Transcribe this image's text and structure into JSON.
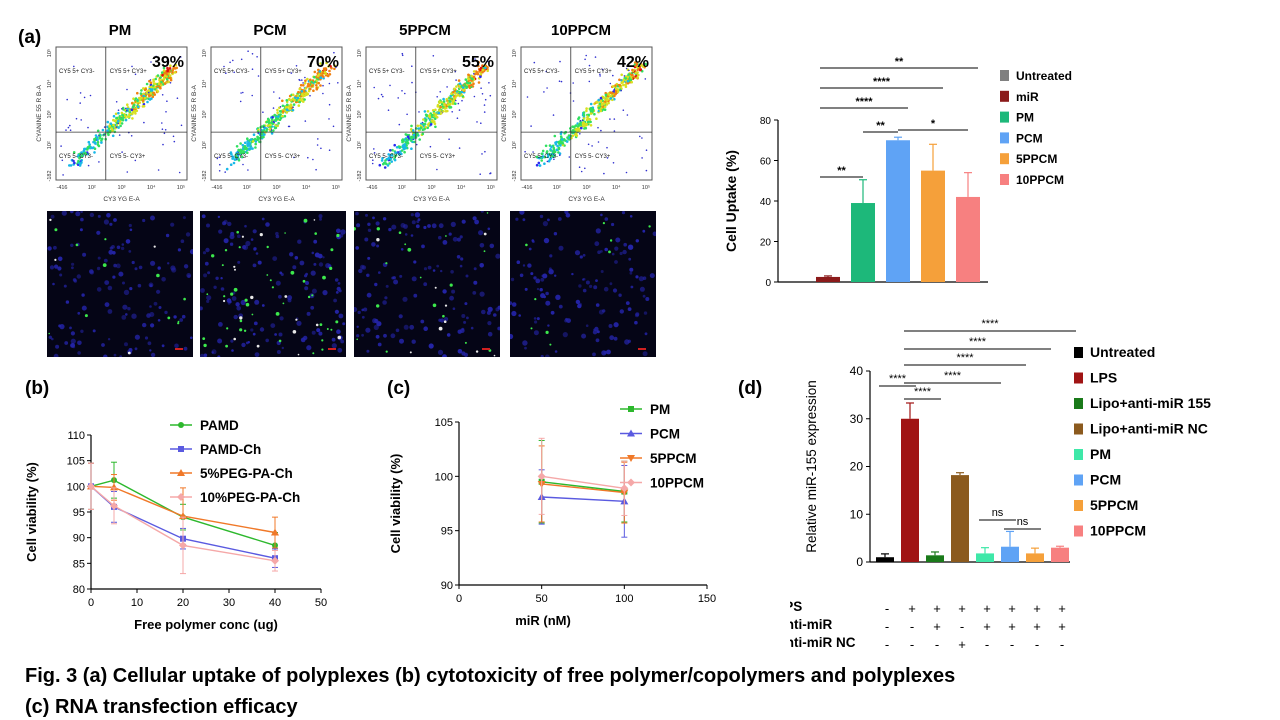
{
  "panel_labels": {
    "a": "(a)",
    "b": "(b)",
    "c": "(c)",
    "d": "(d)"
  },
  "caption": {
    "line1": "Fig. 3 (a) Cellular uptake of polyplexes (b) cytotoxicity of free polymer/copolymers and polyplexes",
    "line2": "(c) RNA transfection efficacy"
  },
  "flow": {
    "panels": [
      {
        "title": "PM",
        "percent": "39%"
      },
      {
        "title": "PCM",
        "percent": "70%"
      },
      {
        "title": "5PPCM",
        "percent": "55%"
      },
      {
        "title": "10PPCM",
        "percent": "42%"
      }
    ],
    "quadrant_labels": {
      "ul": "CY5 5+ CY3-",
      "ur": "CY5 5+ CY3+",
      "ll": "CY5 5- CY3-",
      "lr": "CY5 5- CY3+"
    },
    "x_axis_label": "CY3 YG E-A",
    "y_axis_label": "CYANINE 55 R B-A",
    "x_ticks": [
      "-416",
      "10²",
      "10³",
      "10⁴",
      "10⁵"
    ],
    "y_ticks": [
      "-182",
      "10²",
      "10³",
      "10⁴",
      "10⁵"
    ]
  },
  "chart_data": [
    {
      "id": "uptake",
      "type": "bar",
      "ylabel": "Cell Uptake (%)",
      "ylim": [
        0,
        80
      ],
      "yticks": [
        0,
        20,
        40,
        60,
        80
      ],
      "categories": [
        "Untreated",
        "miR",
        "PM",
        "PCM",
        "5PPCM",
        "10PPCM"
      ],
      "values": [
        0,
        2.5,
        39,
        70,
        55,
        42
      ],
      "errors": [
        0,
        0.5,
        11.5,
        1.5,
        13,
        12
      ],
      "colors": [
        "#808080",
        "#8B1A1A",
        "#1DB87A",
        "#5FA3F5",
        "#F5A03A",
        "#F78080"
      ],
      "legend": [
        "Untreated",
        "miR",
        "PM",
        "PCM",
        "5PPCM",
        "10PPCM"
      ],
      "significance": [
        {
          "from": 1,
          "to": 2,
          "label": "**"
        },
        {
          "from": 2,
          "to": 3,
          "label": "**"
        },
        {
          "from": 3,
          "to": 5,
          "label": "*"
        },
        {
          "from": 1,
          "to": 3,
          "label": "****"
        },
        {
          "from": 1,
          "to": 4,
          "label": "****"
        },
        {
          "from": 1,
          "to": 5,
          "label": "**"
        }
      ]
    },
    {
      "id": "viability_free",
      "type": "line",
      "xlabel": "Free polymer conc (ug)",
      "ylabel": "Cell viability (%)",
      "xlim": [
        0,
        50
      ],
      "ylim": [
        80,
        110
      ],
      "xticks": [
        0,
        10,
        20,
        30,
        40,
        50
      ],
      "yticks": [
        80,
        85,
        90,
        95,
        100,
        105,
        110
      ],
      "x": [
        0,
        5,
        20,
        40
      ],
      "series": [
        {
          "name": "PAMD",
          "color": "#2DB82D",
          "marker": "circle",
          "values": [
            100,
            101.2,
            94,
            88.5
          ],
          "errors": [
            4.5,
            3.5,
            2.5,
            2.5
          ]
        },
        {
          "name": "PAMD-Ch",
          "color": "#5A5AE0",
          "marker": "square",
          "values": [
            100,
            96,
            89.8,
            86
          ],
          "errors": [
            4.5,
            3,
            2,
            1.8
          ]
        },
        {
          "name": "5%PEG-PA-Ch",
          "color": "#F07828",
          "marker": "triangle",
          "values": [
            100,
            99.8,
            94.2,
            91
          ],
          "errors": [
            4.5,
            2.5,
            5.5,
            3
          ]
        },
        {
          "name": "10%PEG-PA-Ch",
          "color": "#F5A8A8",
          "marker": "diamond",
          "values": [
            100,
            96.2,
            88.5,
            85.5
          ],
          "errors": [
            4.5,
            3.5,
            5.5,
            2
          ]
        }
      ]
    },
    {
      "id": "viability_polyplex",
      "type": "line",
      "xlabel": "miR  (nM)",
      "ylabel": "Cell viability (%)",
      "xlim": [
        0,
        150
      ],
      "ylim": [
        90,
        105
      ],
      "xticks": [
        0,
        50,
        100,
        150
      ],
      "yticks": [
        90,
        95,
        100,
        105
      ],
      "x": [
        50,
        100
      ],
      "series": [
        {
          "name": "PM",
          "color": "#2DB82D",
          "marker": "square",
          "values": [
            99.5,
            98.6
          ],
          "errors": [
            3.8,
            2.8
          ]
        },
        {
          "name": "PCM",
          "color": "#5A5AE0",
          "marker": "triangle",
          "values": [
            98.1,
            97.7
          ],
          "errors": [
            2.5,
            3.3
          ]
        },
        {
          "name": "5PPCM",
          "color": "#F07828",
          "marker": "triangle-down",
          "values": [
            99.3,
            98.5
          ],
          "errors": [
            3.5,
            2.8
          ]
        },
        {
          "name": "10PPCM",
          "color": "#F5A8A8",
          "marker": "diamond",
          "values": [
            100,
            98.9
          ],
          "errors": [
            3.5,
            2.5
          ]
        }
      ]
    },
    {
      "id": "mir155",
      "type": "bar",
      "ylabel": "Relative miR-155 expression",
      "ylim": [
        0,
        40
      ],
      "yticks": [
        0,
        10,
        20,
        30,
        40
      ],
      "categories": [
        "Untreated",
        "LPS",
        "Lipo+anti-miR 155",
        "Lipo+anti-miR NC",
        "PM",
        "PCM",
        "5PPCM",
        "10PPCM"
      ],
      "values": [
        1,
        30,
        1.4,
        18.2,
        1.8,
        3.2,
        1.8,
        3
      ],
      "errors": [
        0.7,
        3.3,
        0.7,
        0.5,
        1.2,
        3.2,
        1.1,
        0.3
      ],
      "colors": [
        "#000000",
        "#A01414",
        "#1A7A1A",
        "#8B5A1E",
        "#3EE8A8",
        "#5FA3F5",
        "#F5A03A",
        "#F78080"
      ],
      "legend": [
        "Untreated",
        "LPS",
        "Lipo+anti-miR 155",
        "Lipo+anti-miR NC",
        "PM",
        "PCM",
        "5PPCM",
        "10PPCM"
      ],
      "significance": [
        {
          "from": 0,
          "to": 1,
          "label": "****"
        },
        {
          "from": 1,
          "to": 2,
          "label": "****"
        },
        {
          "from": 1,
          "to": 4,
          "label": "****"
        },
        {
          "from": 1,
          "to": 5,
          "label": "****"
        },
        {
          "from": 1,
          "to": 6,
          "label": "****"
        },
        {
          "from": 1,
          "to": 7,
          "label": "****"
        },
        {
          "from": 4,
          "to": 5,
          "label": "ns"
        },
        {
          "from": 5,
          "to": 6,
          "label": "ns"
        }
      ],
      "treatment_table": {
        "rows": [
          {
            "label": "LPS",
            "cells": [
              "-",
              "+",
              "+",
              "+",
              "+",
              "+",
              "+",
              "+"
            ]
          },
          {
            "label": "Anti-miR",
            "cells": [
              "-",
              "-",
              "+",
              "-",
              "+",
              "+",
              "+",
              "+"
            ]
          },
          {
            "label": "Anti-miR NC",
            "cells": [
              "-",
              "-",
              "-",
              "+",
              "-",
              "-",
              "-",
              "-"
            ]
          }
        ]
      }
    }
  ]
}
